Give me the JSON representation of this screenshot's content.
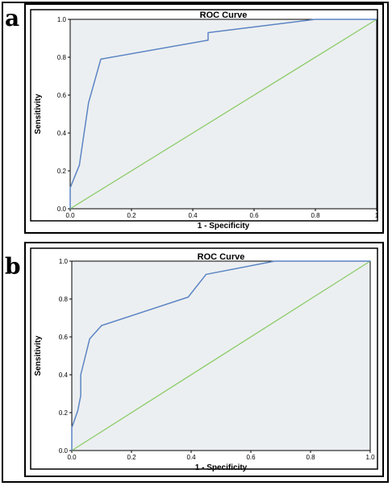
{
  "panels": {
    "a_label": "a",
    "b_label": "b"
  },
  "colors": {
    "plot_background": "#eceff1",
    "roc_curve": "#5b84c4",
    "reference_line": "#8ccc6a",
    "frame": "#000000"
  },
  "chart_data": [
    {
      "type": "line",
      "title": "ROC Curve",
      "xlabel": "1 - Specificity",
      "ylabel": "Sensitivity",
      "xlim": [
        0,
        1
      ],
      "ylim": [
        0,
        1
      ],
      "x_tick_labels": [
        "0.0",
        "0.2",
        "0.4",
        "0.6",
        "0.8",
        "1"
      ],
      "y_tick_labels": [
        "0.0",
        "0.2",
        "0.4",
        "0.6",
        "0.8",
        "1.0"
      ],
      "grid": false,
      "series": [
        {
          "x": [
            0,
            0,
            0.03,
            0.06,
            0.1,
            0.45,
            0.45,
            0.8,
            1
          ],
          "y": [
            0,
            0.11,
            0.23,
            0.56,
            0.79,
            0.89,
            0.93,
            1,
            1
          ]
        },
        {
          "x": [
            0,
            1
          ],
          "y": [
            0,
            1
          ]
        }
      ]
    },
    {
      "type": "line",
      "title": "ROC Curve",
      "xlabel": "1 - Specificity",
      "ylabel": "Sensitivity",
      "xlim": [
        0,
        1
      ],
      "ylim": [
        0,
        1
      ],
      "x_tick_labels": [
        "0.0",
        "0.2",
        "0.4",
        "0.6",
        "0.8",
        "1.0"
      ],
      "y_tick_labels": [
        "0.0",
        "0.2",
        "0.4",
        "0.6",
        "0.8",
        "1.0"
      ],
      "grid": false,
      "series": [
        {
          "x": [
            0,
            0,
            0.02,
            0.03,
            0.03,
            0.06,
            0.1,
            0.39,
            0.45,
            0.68,
            1
          ],
          "y": [
            0,
            0.12,
            0.21,
            0.29,
            0.4,
            0.59,
            0.66,
            0.81,
            0.93,
            1,
            1
          ]
        },
        {
          "x": [
            0,
            1
          ],
          "y": [
            0,
            1
          ]
        }
      ]
    }
  ]
}
